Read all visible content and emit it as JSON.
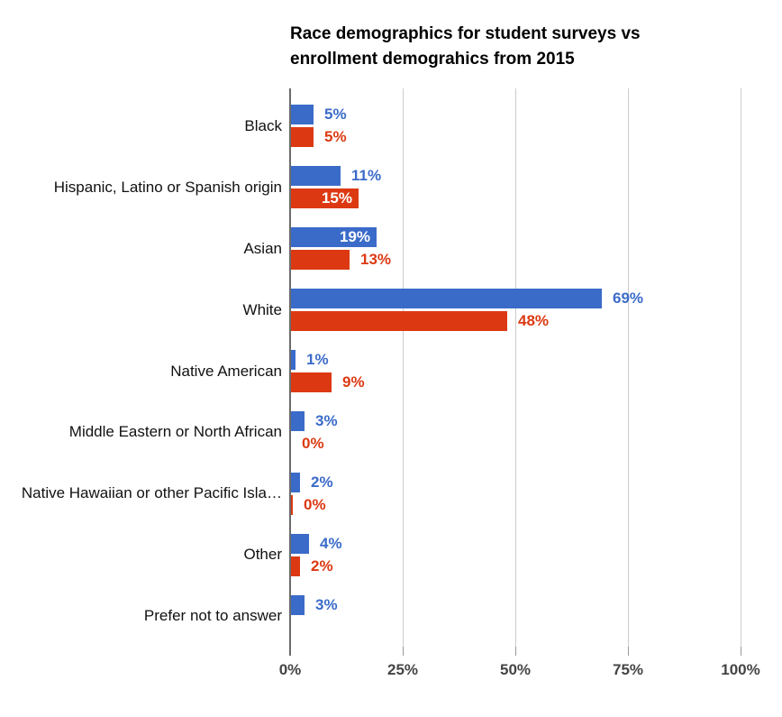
{
  "chart_data": {
    "type": "bar",
    "orientation": "horizontal",
    "title": "Race demographics for student surveys vs enrollment demograhics from 2015",
    "title_lines": [
      "Race demographics for student surveys vs",
      "enrollment demograhics from 2015"
    ],
    "categories": [
      "Black",
      "Hispanic, Latino or Spanish origin",
      "Asian",
      "White",
      "Native American",
      "Middle Eastern or North African",
      "Native Hawaiian or other Pacific Isla…",
      "Other",
      "Prefer not to answer"
    ],
    "series": [
      {
        "name": "blue",
        "color": "#3B6BC9",
        "values": [
          5,
          11,
          19,
          69,
          1,
          3,
          2,
          4,
          3
        ],
        "labels": [
          "5%",
          "11%",
          "19%",
          "69%",
          "1%",
          "3%",
          "2%",
          "4%",
          "3%"
        ],
        "label_placement": [
          "outside",
          "outside",
          "inside",
          "outside",
          "outside",
          "outside",
          "outside",
          "outside",
          "outside"
        ]
      },
      {
        "name": "red",
        "color": "#DC3912",
        "values": [
          5,
          15,
          13,
          48,
          9,
          0,
          0,
          2,
          null
        ],
        "labels": [
          "5%",
          "15%",
          "13%",
          "48%",
          "9%",
          "0%",
          "0%",
          "2%",
          null
        ],
        "label_placement": [
          "outside",
          "inside",
          "outside",
          "outside",
          "outside",
          "outside",
          "outside",
          "outside",
          "none"
        ]
      }
    ],
    "x_ticks": [
      "0%",
      "25%",
      "50%",
      "75%",
      "100%"
    ],
    "xlim": [
      0,
      100
    ],
    "grid": true,
    "legend": "none",
    "hints": {
      "red_zero_sliver_category_index": 6
    }
  }
}
